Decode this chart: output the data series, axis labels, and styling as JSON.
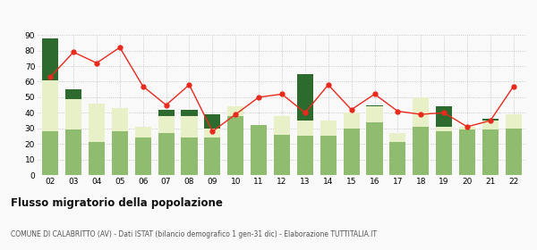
{
  "years": [
    "02",
    "03",
    "04",
    "05",
    "06",
    "07",
    "08",
    "09",
    "10",
    "11",
    "12",
    "13",
    "14",
    "15",
    "16",
    "17",
    "18",
    "19",
    "20",
    "21",
    "22"
  ],
  "iscritti_comuni": [
    28,
    29,
    21,
    28,
    24,
    27,
    24,
    24,
    38,
    32,
    26,
    25,
    25,
    30,
    34,
    21,
    31,
    28,
    29,
    29,
    30
  ],
  "iscritti_estero": [
    33,
    20,
    25,
    15,
    7,
    11,
    14,
    6,
    6,
    0,
    12,
    10,
    10,
    10,
    10,
    6,
    19,
    3,
    2,
    6,
    9
  ],
  "iscritti_altri": [
    27,
    6,
    0,
    0,
    0,
    4,
    4,
    9,
    0,
    0,
    0,
    30,
    0,
    0,
    1,
    0,
    0,
    13,
    0,
    1,
    0
  ],
  "cancellati": [
    63,
    79,
    72,
    82,
    57,
    45,
    58,
    28,
    39,
    50,
    52,
    40,
    58,
    42,
    52,
    41,
    39,
    40,
    31,
    35,
    57
  ],
  "color_comuni": "#8fbc6e",
  "color_estero": "#e8f0c8",
  "color_altri": "#2d6a2d",
  "color_cancellati": "#e8291c",
  "ylim": [
    0,
    90
  ],
  "yticks": [
    0,
    10,
    20,
    30,
    40,
    50,
    60,
    70,
    80,
    90
  ],
  "title": "Flusso migratorio della popolazione",
  "subtitle": "COMUNE DI CALABRITTO (AV) - Dati ISTAT (bilancio demografico 1 gen-31 dic) - Elaborazione TUTTITALIA.IT",
  "bg_color": "#f9f9f9"
}
